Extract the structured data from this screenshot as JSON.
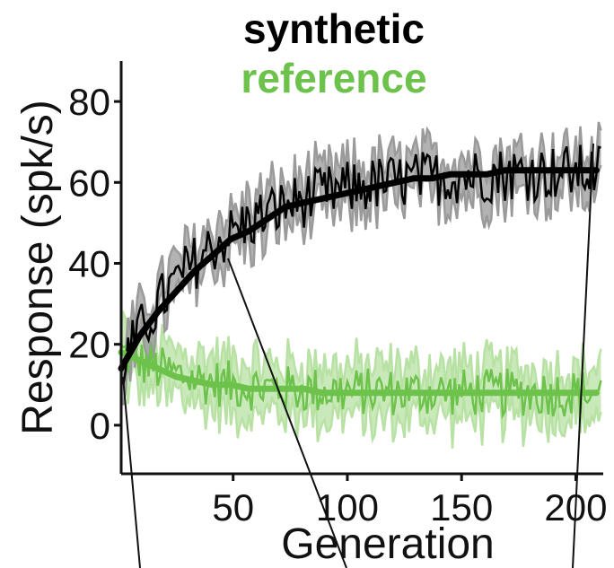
{
  "chart_data": {
    "type": "line",
    "xlabel": "Generation",
    "ylabel": "Response (spk/s)",
    "xlim": [
      1,
      212
    ],
    "ylim": [
      -12,
      90
    ],
    "xticks": [
      50,
      100,
      150,
      200
    ],
    "yticks": [
      0,
      20,
      40,
      60,
      80
    ],
    "grid": false,
    "legend": {
      "placement": "top-center"
    },
    "series": [
      {
        "name": "synthetic",
        "color": "#000000",
        "band_color": "#9a9a9a",
        "fit": {
          "form": "exponential-rise",
          "start": 14,
          "asymptote": 63,
          "tau": 42
        },
        "x": [
          1,
          9,
          17,
          25,
          33,
          41,
          49,
          57,
          65,
          73,
          81,
          89,
          97,
          105,
          113,
          121,
          129,
          137,
          145,
          153,
          161,
          169,
          177,
          185,
          193,
          201,
          209
        ],
        "y": [
          14,
          22,
          28,
          33,
          38,
          42,
          46,
          48,
          51,
          54,
          55,
          56,
          57,
          58,
          59,
          60,
          61,
          61,
          62,
          62,
          62,
          63,
          63,
          63,
          63,
          63,
          63
        ]
      },
      {
        "name": "reference",
        "color": "#6cc24a",
        "band_color": "#b8e2a4",
        "fit": {
          "form": "exponential-decay",
          "start": 18,
          "asymptote": 8,
          "tau": 30
        },
        "x": [
          1,
          9,
          17,
          25,
          33,
          41,
          49,
          57,
          65,
          73,
          81,
          89,
          97,
          105,
          113,
          121,
          129,
          137,
          145,
          153,
          161,
          169,
          177,
          185,
          193,
          201,
          209
        ],
        "y": [
          18,
          16,
          14,
          12,
          11,
          10,
          10,
          9,
          9,
          9,
          9,
          8,
          8,
          8,
          8,
          8,
          8,
          8,
          8,
          8,
          8,
          8,
          8,
          8,
          8,
          8,
          8
        ]
      }
    ]
  }
}
